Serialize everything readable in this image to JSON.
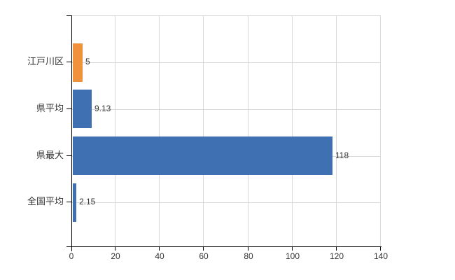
{
  "chart_data": {
    "type": "bar",
    "orientation": "horizontal",
    "title": "",
    "xlabel": "",
    "ylabel": "",
    "categories": [
      "江戸川区",
      "県平均",
      "県最大",
      "全国平均"
    ],
    "values": [
      5,
      9.13,
      118,
      2.15
    ],
    "value_labels": [
      "5",
      "9.13",
      "118",
      "2.15"
    ],
    "bar_colors": [
      "#f0913c",
      "#3f70b2",
      "#3f70b2",
      "#3f70b2"
    ],
    "xlim": [
      0,
      140
    ],
    "xticks": [
      0,
      20,
      40,
      60,
      80,
      100,
      120,
      140
    ],
    "grid": true,
    "legend": false,
    "colors": {
      "grid": "#d8d8d8",
      "axis": "#000000",
      "text": "#333333",
      "background": "#ffffff"
    }
  }
}
